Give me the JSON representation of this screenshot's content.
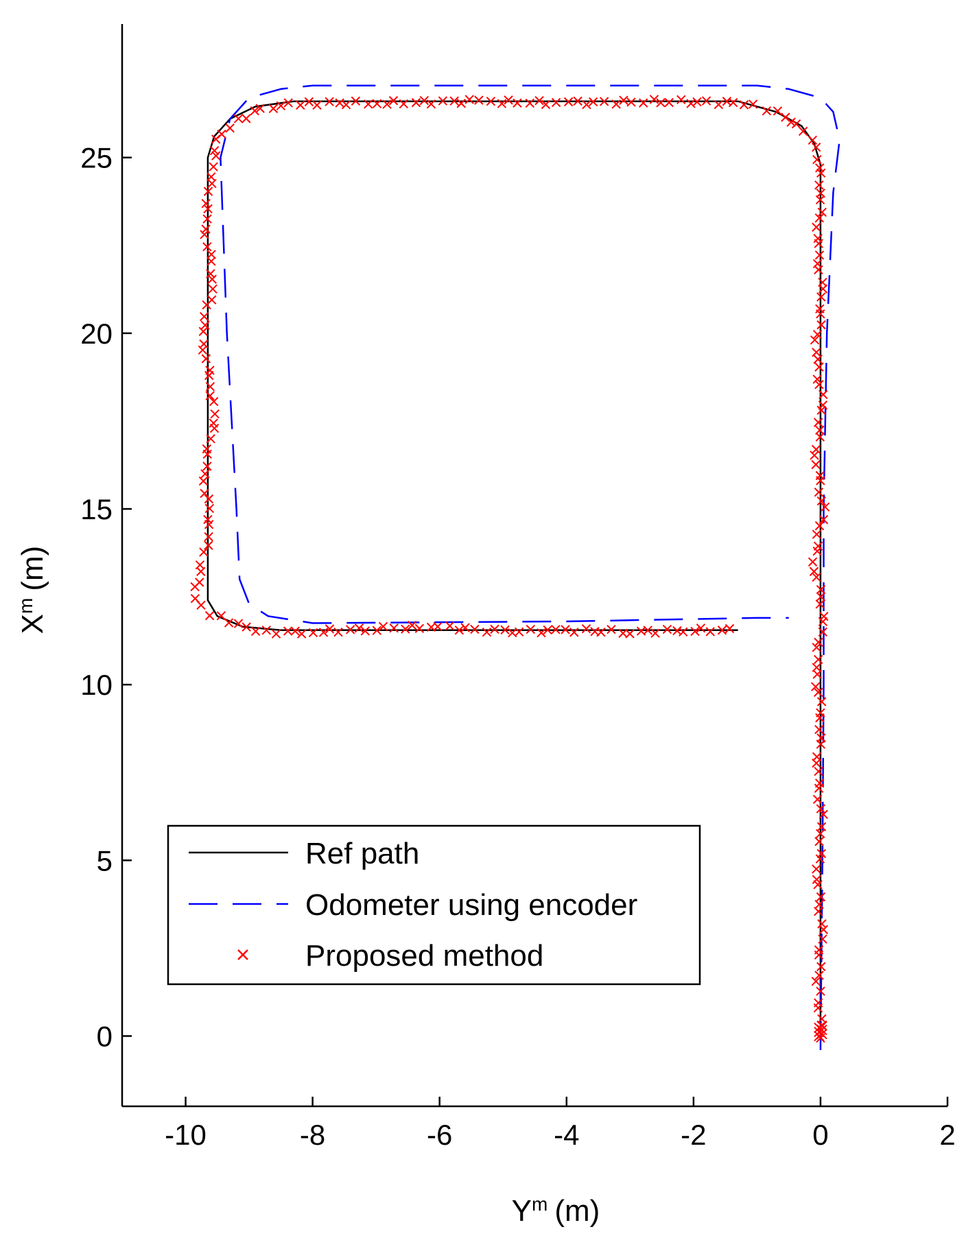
{
  "chart_data": {
    "type": "line",
    "xlabel": "Y",
    "xlabel_sup": "m",
    "xlabel_unit": "(m)",
    "ylabel": "X",
    "ylabel_sup": "m",
    "ylabel_unit": "(m)",
    "xlim": [
      -11,
      2
    ],
    "ylim": [
      -2,
      28.8
    ],
    "xticks": [
      -10,
      -8,
      -6,
      -4,
      -2,
      0,
      2
    ],
    "yticks": [
      0,
      5,
      10,
      15,
      20,
      25
    ],
    "grid": false,
    "legend_position": "lower-left",
    "series": [
      {
        "name": "Ref path",
        "style": "solid",
        "color": "#000000",
        "points": [
          [
            0,
            0
          ],
          [
            0,
            24.8
          ],
          [
            -0.1,
            25.4
          ],
          [
            -0.3,
            25.9
          ],
          [
            -0.7,
            26.3
          ],
          [
            -1.3,
            26.6
          ],
          [
            -8.3,
            26.6
          ],
          [
            -8.9,
            26.45
          ],
          [
            -9.3,
            26.1
          ],
          [
            -9.55,
            25.6
          ],
          [
            -9.65,
            25.0
          ],
          [
            -9.65,
            12.4
          ],
          [
            -9.5,
            11.95
          ],
          [
            -9.1,
            11.65
          ],
          [
            -8.5,
            11.55
          ],
          [
            -1.3,
            11.55
          ]
        ]
      },
      {
        "name": "Odometer using encoder",
        "style": "dashed",
        "color": "#0000ff",
        "points": [
          [
            0,
            -0.4
          ],
          [
            0.03,
            5
          ],
          [
            0.05,
            10
          ],
          [
            0.05,
            15
          ],
          [
            0.1,
            20
          ],
          [
            0.2,
            24
          ],
          [
            0.3,
            25.5
          ],
          [
            0.2,
            26.3
          ],
          [
            0,
            26.7
          ],
          [
            -0.5,
            26.95
          ],
          [
            -1.0,
            27.05
          ],
          [
            -8.0,
            27.05
          ],
          [
            -8.5,
            26.95
          ],
          [
            -9.0,
            26.7
          ],
          [
            -9.3,
            26.1
          ],
          [
            -9.45,
            25.0
          ],
          [
            -9.35,
            20
          ],
          [
            -9.2,
            15
          ],
          [
            -9.15,
            13.0
          ],
          [
            -9.0,
            12.3
          ],
          [
            -8.7,
            11.95
          ],
          [
            -8.0,
            11.75
          ],
          [
            -4.0,
            11.8
          ],
          [
            -1.0,
            11.9
          ],
          [
            -0.5,
            11.9
          ]
        ]
      },
      {
        "name": "Proposed method",
        "style": "markers",
        "marker": "x",
        "color": "#ff0000",
        "points": [
          [
            0,
            0
          ],
          [
            0,
            0.5
          ],
          [
            -0.04,
            1.5
          ],
          [
            0.02,
            3
          ],
          [
            -0.05,
            4.5
          ],
          [
            0.03,
            6
          ],
          [
            -0.06,
            7.5
          ],
          [
            0.02,
            9
          ],
          [
            -0.08,
            10.5
          ],
          [
            0.05,
            12
          ],
          [
            -0.1,
            13.5
          ],
          [
            0.04,
            15
          ],
          [
            -0.07,
            16.5
          ],
          [
            0.03,
            18
          ],
          [
            -0.08,
            19.5
          ],
          [
            0.04,
            21
          ],
          [
            -0.06,
            22.5
          ],
          [
            0.02,
            24
          ],
          [
            -0.05,
            25
          ],
          [
            -0.15,
            25.5
          ],
          [
            -0.35,
            25.9
          ],
          [
            -0.7,
            26.3
          ],
          [
            -1.2,
            26.55
          ],
          [
            -2.5,
            26.6
          ],
          [
            -4,
            26.55
          ],
          [
            -5.5,
            26.6
          ],
          [
            -7,
            26.55
          ],
          [
            -8.2,
            26.55
          ],
          [
            -8.8,
            26.4
          ],
          [
            -9.2,
            26.05
          ],
          [
            -9.5,
            25.5
          ],
          [
            -9.6,
            24.5
          ],
          [
            -9.7,
            23
          ],
          [
            -9.55,
            21.5
          ],
          [
            -9.75,
            20
          ],
          [
            -9.6,
            18.5
          ],
          [
            -9.55,
            17.5
          ],
          [
            -9.72,
            16
          ],
          [
            -9.6,
            14.5
          ],
          [
            -9.78,
            13.2
          ],
          [
            -9.85,
            12.5
          ],
          [
            -9.6,
            12.0
          ],
          [
            -9.2,
            11.7
          ],
          [
            -8.7,
            11.5
          ],
          [
            -8,
            11.5
          ],
          [
            -7,
            11.6
          ],
          [
            -6,
            11.65
          ],
          [
            -5,
            11.5
          ],
          [
            -4,
            11.55
          ],
          [
            -3,
            11.5
          ],
          [
            -2,
            11.55
          ],
          [
            -1.3,
            11.55
          ]
        ]
      }
    ]
  }
}
